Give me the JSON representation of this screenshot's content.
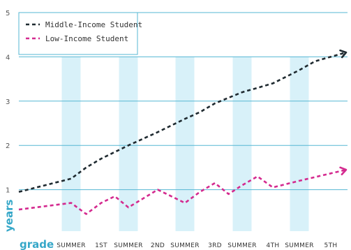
{
  "colors": {
    "middle": "#1f2a30",
    "low": "#d42a8f",
    "grid": "#56b7d3",
    "band": "#d8f1f9",
    "accent": "#35a7c8"
  },
  "chart_data": {
    "type": "line",
    "ylabel": "years",
    "xlabel": "grade",
    "ylim": [
      0,
      5
    ],
    "yticks": [
      "1",
      "2",
      "3",
      "4",
      "5"
    ],
    "grid": true,
    "legend_position": "top-left",
    "categories": [
      "SUMMER",
      "1ST",
      "SUMMER",
      "2ND",
      "SUMMER",
      "3RD",
      "SUMMER",
      "4TH",
      "SUMMER",
      "5TH"
    ],
    "summer_bands": [
      1,
      2,
      3,
      4,
      5,
      6,
      7,
      8,
      9
    ],
    "series": [
      {
        "name": "Middle-Income Student",
        "color_key": "middle",
        "x": [
          0,
          1,
          1.5,
          2,
          3,
          3.5,
          4,
          5,
          5.5,
          6,
          7,
          7.5,
          8,
          9,
          9.5,
          10
        ],
        "y": [
          0.95,
          1.25,
          1.5,
          1.7,
          2.0,
          2.15,
          2.3,
          2.6,
          2.75,
          2.95,
          3.2,
          3.3,
          3.4,
          3.7,
          3.9,
          4.1
        ]
      },
      {
        "name": "Low-Income Student",
        "color_key": "low",
        "x": [
          0,
          1,
          1.5,
          2,
          2.5,
          3,
          3.5,
          4,
          5,
          5.5,
          6,
          6.5,
          7,
          7.5,
          8,
          9,
          10
        ],
        "y": [
          0.55,
          0.7,
          0.45,
          0.7,
          0.85,
          0.6,
          0.8,
          1.0,
          0.7,
          0.95,
          1.15,
          0.9,
          1.1,
          1.3,
          1.05,
          1.2,
          1.45
        ]
      }
    ]
  }
}
